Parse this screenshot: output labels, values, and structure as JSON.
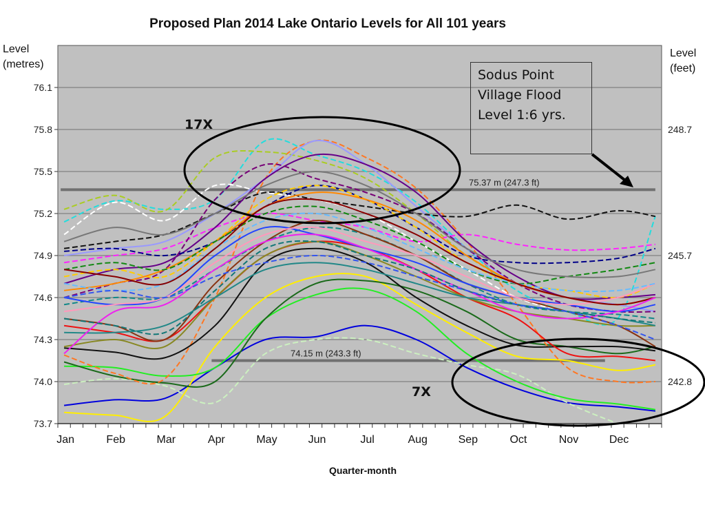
{
  "chart_data": {
    "type": "line",
    "title": "Proposed Plan 2014 Lake Ontario Levels for All 101 years",
    "xlabel": "Quarter-month",
    "ylabel_left": [
      "Level",
      "(metres)"
    ],
    "ylabel_right": [
      "Level",
      "(feet)"
    ],
    "ylim": [
      73.7,
      76.4
    ],
    "y_ticks": [
      "76.1",
      "75.8",
      "75.5",
      "75.2",
      "74.9",
      "74.6",
      "74.3",
      "74.0",
      "73.7"
    ],
    "y_tick_values": [
      76.1,
      75.8,
      75.5,
      75.2,
      74.9,
      74.6,
      74.3,
      74.0,
      73.7
    ],
    "right_ticks": [
      {
        "label": "248.7",
        "metres": 75.8
      },
      {
        "label": "245.7",
        "metres": 74.9
      },
      {
        "label": "242.8",
        "metres": 74.0
      }
    ],
    "x_count": 48,
    "x_ticks": [
      "Jan",
      "Feb",
      "Mar",
      "Apr",
      "May",
      "Jun",
      "Jul",
      "Aug",
      "Sep",
      "Oct",
      "Nov",
      "Dec"
    ],
    "x_knots": [
      0,
      4,
      8,
      12,
      16,
      20,
      24,
      28,
      32,
      36,
      40,
      44,
      47
    ],
    "grid": true,
    "reference_lines": [
      {
        "label": "75.37 m (247.3 ft)",
        "value": 75.37,
        "from": 0,
        "to": 47
      },
      {
        "label": "74.15 m  (243.3 ft)",
        "value": 74.15,
        "from": 12,
        "to": 43
      }
    ],
    "annotations": {
      "high_count": "17X",
      "low_count": "7X",
      "note_lines": [
        "Sodus Point",
        "Village Flood",
        "Level  1:6 yrs."
      ]
    },
    "series": [
      {
        "color": "#0000dd",
        "dash": false,
        "values": [
          73.83,
          73.87,
          73.88,
          74.1,
          74.3,
          74.32,
          74.4,
          74.3,
          74.1,
          73.95,
          73.85,
          73.82,
          73.79
        ]
      },
      {
        "color": "#ffee00",
        "dash": false,
        "values": [
          73.78,
          73.76,
          73.75,
          74.25,
          74.6,
          74.75,
          74.75,
          74.55,
          74.35,
          74.18,
          74.15,
          74.08,
          74.12
        ]
      },
      {
        "color": "#ccf0c0",
        "dash": true,
        "values": [
          73.98,
          74.02,
          73.97,
          73.85,
          74.2,
          74.3,
          74.3,
          74.2,
          74.12,
          74.05,
          73.85,
          73.7,
          73.6
        ]
      },
      {
        "color": "#22ee22",
        "dash": false,
        "values": [
          74.11,
          74.1,
          74.04,
          74.1,
          74.45,
          74.62,
          74.66,
          74.5,
          74.2,
          74.0,
          73.88,
          73.84,
          73.8
        ]
      },
      {
        "color": "#1a6a1a",
        "dash": false,
        "values": [
          74.14,
          74.04,
          73.99,
          74.0,
          74.45,
          74.7,
          74.72,
          74.65,
          74.5,
          74.3,
          74.25,
          74.2,
          74.25
        ]
      },
      {
        "color": "#ff7722",
        "dash": true,
        "values": [
          74.19,
          74.06,
          74.02,
          74.6,
          75.45,
          75.72,
          75.6,
          75.38,
          75.0,
          74.55,
          74.1,
          74.0,
          74.0
        ]
      },
      {
        "color": "#111111",
        "dash": false,
        "values": [
          74.24,
          74.21,
          74.17,
          74.4,
          74.85,
          74.95,
          74.85,
          74.6,
          74.4,
          74.26,
          74.25,
          74.25,
          74.22
        ]
      },
      {
        "color": "#ee1111",
        "dash": false,
        "values": [
          74.4,
          74.35,
          74.3,
          74.6,
          74.9,
          75.0,
          74.95,
          74.8,
          74.6,
          74.45,
          74.2,
          74.18,
          74.15
        ]
      },
      {
        "color": "#22dddd",
        "dash": true,
        "values": [
          75.14,
          75.29,
          75.23,
          75.3,
          75.72,
          75.62,
          75.5,
          75.28,
          74.95,
          74.65,
          74.5,
          74.45,
          75.18
        ]
      },
      {
        "color": "#aacc22",
        "dash": true,
        "values": [
          75.23,
          75.33,
          75.22,
          75.6,
          75.64,
          75.58,
          75.45,
          75.2,
          74.9,
          74.7,
          74.6,
          74.55,
          74.5
        ]
      },
      {
        "color": "#ffffff",
        "dash": true,
        "values": [
          75.05,
          75.28,
          75.15,
          75.4,
          75.35,
          75.3,
          75.2,
          75.0,
          74.8,
          74.6,
          74.5,
          74.45,
          74.4
        ]
      },
      {
        "color": "#9999ff",
        "dash": false,
        "values": [
          74.9,
          74.95,
          75.0,
          75.2,
          75.45,
          75.72,
          75.55,
          75.25,
          74.95,
          74.7,
          74.6,
          74.55,
          74.5
        ]
      },
      {
        "color": "#111111",
        "dash": true,
        "values": [
          74.95,
          75.0,
          75.05,
          75.2,
          75.35,
          75.3,
          75.25,
          75.2,
          75.18,
          75.26,
          75.16,
          75.22,
          75.18
        ]
      },
      {
        "color": "#ff22ff",
        "dash": true,
        "values": [
          74.85,
          74.9,
          74.95,
          75.1,
          75.2,
          75.15,
          75.1,
          75.0,
          75.05,
          74.98,
          74.94,
          74.95,
          74.98
        ]
      },
      {
        "color": "#660088",
        "dash": false,
        "values": [
          74.7,
          74.8,
          74.85,
          75.1,
          75.45,
          75.62,
          75.55,
          75.35,
          75.0,
          74.75,
          74.6,
          74.6,
          74.62
        ]
      },
      {
        "color": "#770077",
        "dash": true,
        "values": [
          74.6,
          74.7,
          74.8,
          75.3,
          75.55,
          75.45,
          75.35,
          75.2,
          74.95,
          74.7,
          74.55,
          74.5,
          74.5
        ]
      },
      {
        "color": "#000088",
        "dash": true,
        "values": [
          74.93,
          74.95,
          74.9,
          75.0,
          75.25,
          75.4,
          75.3,
          75.1,
          74.9,
          74.85,
          74.85,
          74.88,
          74.95
        ]
      },
      {
        "color": "#118888",
        "dash": true,
        "values": [
          74.55,
          74.6,
          74.6,
          74.8,
          75.0,
          75.1,
          75.05,
          74.9,
          74.7,
          74.55,
          74.5,
          74.48,
          74.45
        ]
      },
      {
        "color": "#883311",
        "dash": false,
        "values": [
          74.45,
          74.4,
          74.3,
          74.7,
          75.0,
          75.15,
          75.05,
          74.9,
          74.7,
          74.6,
          74.5,
          74.4,
          74.25
        ]
      },
      {
        "color": "#ffcc00",
        "dash": true,
        "values": [
          74.75,
          74.8,
          74.75,
          75.0,
          75.3,
          75.4,
          75.3,
          75.1,
          74.85,
          74.7,
          74.65,
          74.6,
          74.7
        ]
      },
      {
        "color": "#2244ff",
        "dash": false,
        "values": [
          74.6,
          74.55,
          74.6,
          74.9,
          75.1,
          75.05,
          74.95,
          74.85,
          74.7,
          74.6,
          74.55,
          74.5,
          74.55
        ]
      },
      {
        "color": "#ff8800",
        "dash": false,
        "values": [
          74.65,
          74.7,
          74.8,
          75.0,
          75.25,
          75.35,
          75.3,
          75.15,
          74.9,
          74.7,
          74.6,
          74.55,
          74.6
        ]
      },
      {
        "color": "#888822",
        "dash": false,
        "values": [
          74.25,
          74.3,
          74.25,
          74.6,
          74.9,
          75.0,
          74.9,
          74.75,
          74.6,
          74.5,
          74.45,
          74.4,
          74.4
        ]
      },
      {
        "color": "#118811",
        "dash": true,
        "values": [
          74.8,
          74.85,
          74.8,
          75.0,
          75.2,
          75.25,
          75.15,
          75.0,
          74.8,
          74.7,
          74.75,
          74.8,
          74.85
        ]
      },
      {
        "color": "#228888",
        "dash": false,
        "values": [
          74.35,
          74.35,
          74.4,
          74.6,
          74.8,
          74.85,
          74.8,
          74.7,
          74.6,
          74.55,
          74.5,
          74.45,
          74.4
        ]
      },
      {
        "color": "#ff99bb",
        "dash": false,
        "values": [
          74.5,
          74.55,
          74.6,
          74.85,
          75.05,
          75.1,
          75.0,
          74.9,
          74.75,
          74.6,
          74.55,
          74.6,
          74.7
        ]
      },
      {
        "color": "#66bbff",
        "dash": true,
        "values": [
          74.7,
          74.65,
          74.7,
          74.95,
          75.15,
          75.2,
          75.1,
          74.95,
          74.8,
          74.7,
          74.65,
          74.65,
          74.7
        ]
      },
      {
        "color": "#880000",
        "dash": false,
        "values": [
          74.8,
          74.75,
          74.7,
          74.95,
          75.25,
          75.3,
          75.2,
          75.05,
          74.85,
          74.7,
          74.6,
          74.55,
          74.6
        ]
      },
      {
        "color": "#ee22ee",
        "dash": false,
        "values": [
          74.2,
          74.5,
          74.55,
          74.8,
          75.0,
          75.05,
          74.95,
          74.8,
          74.65,
          74.5,
          74.45,
          74.5,
          74.6
        ]
      },
      {
        "color": "#117777",
        "dash": true,
        "values": [
          74.45,
          74.4,
          74.35,
          74.65,
          74.95,
          75.0,
          74.9,
          74.8,
          74.65,
          74.55,
          74.5,
          74.45,
          74.42
        ]
      },
      {
        "color": "#777777",
        "dash": false,
        "values": [
          75.0,
          75.1,
          75.05,
          75.2,
          75.4,
          75.5,
          75.4,
          75.2,
          74.95,
          74.8,
          74.75,
          74.75,
          74.8
        ]
      },
      {
        "color": "#3355ee",
        "dash": true,
        "values": [
          74.6,
          74.65,
          74.6,
          74.75,
          74.85,
          74.9,
          74.85,
          74.75,
          74.65,
          74.55,
          74.5,
          74.4,
          74.3
        ]
      }
    ]
  }
}
